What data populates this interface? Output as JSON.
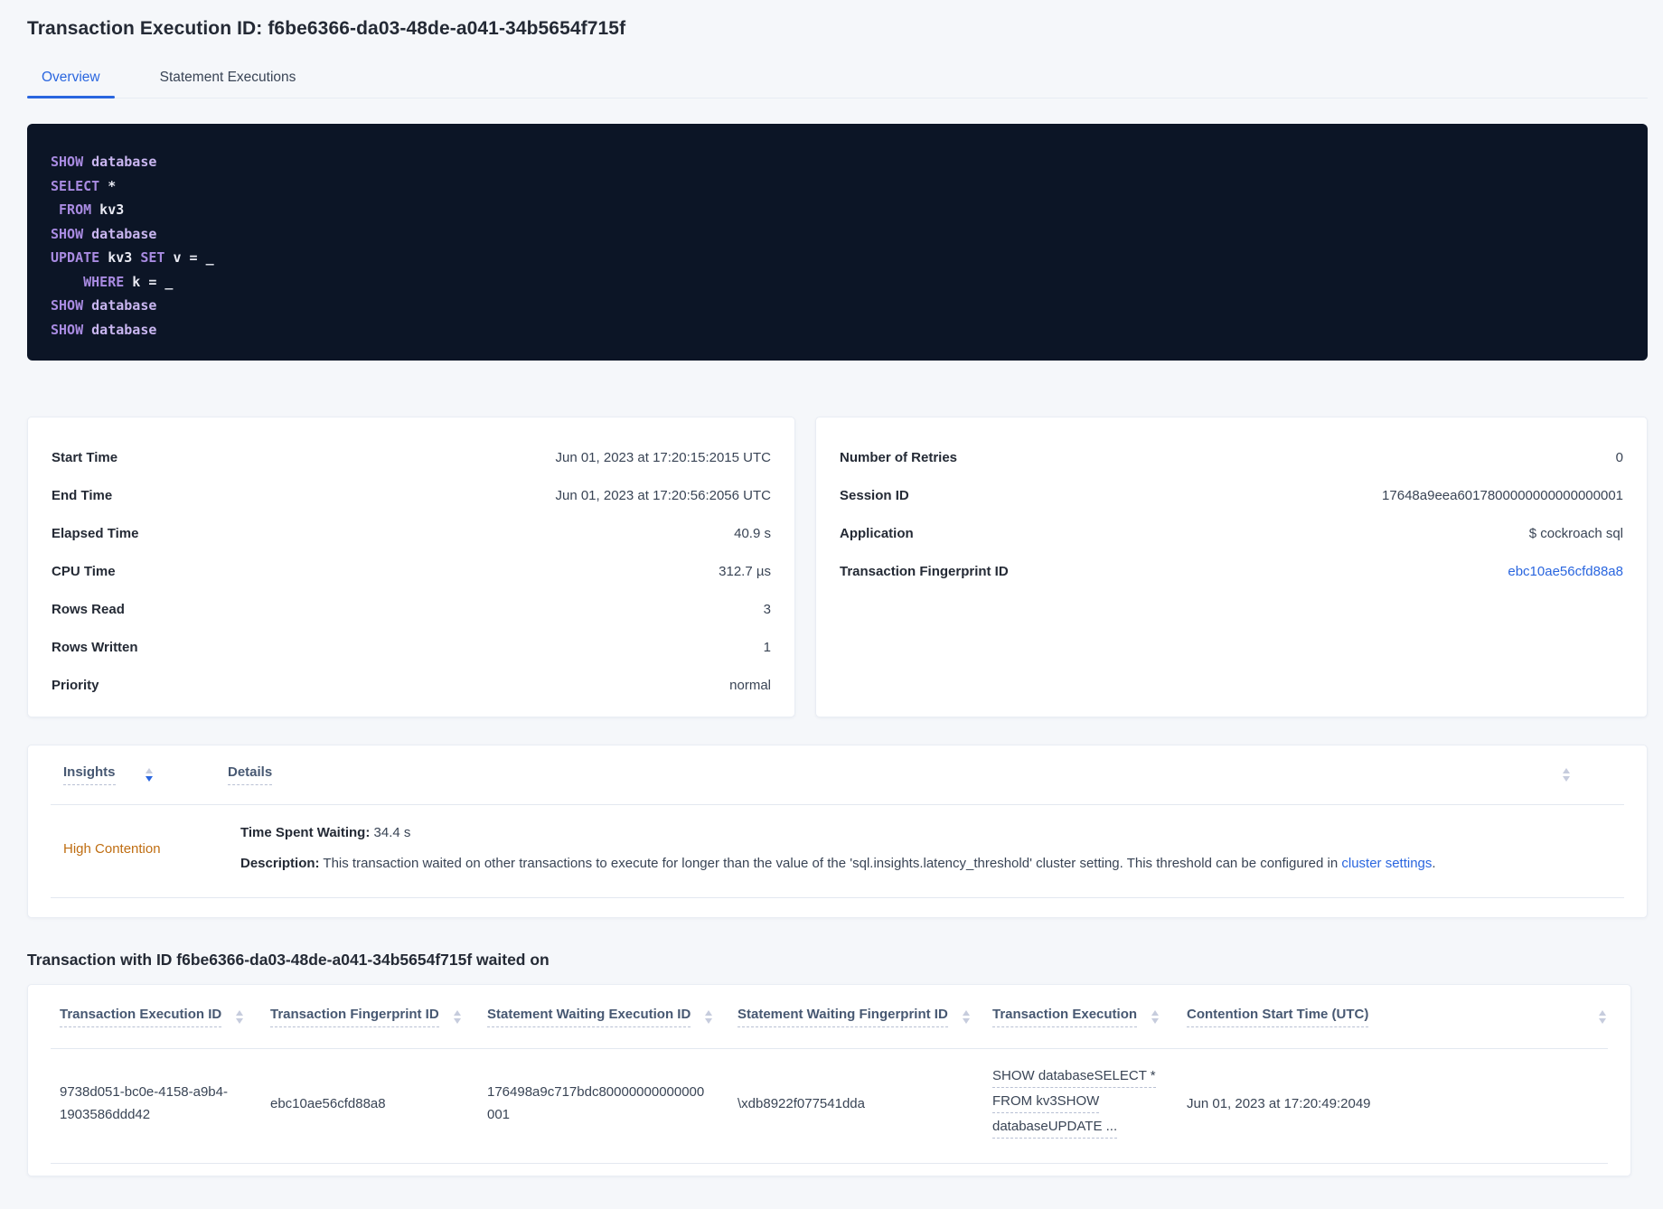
{
  "page": {
    "title": "Transaction Execution ID: f6be6366-da03-48de-a041-34b5654f715f",
    "tabs": [
      {
        "label": "Overview",
        "active": true
      },
      {
        "label": "Statement Executions",
        "active": false
      }
    ]
  },
  "sql_box": {
    "lines": [
      [
        [
          "kw",
          "SHOW"
        ],
        [
          "pl",
          " "
        ],
        [
          "db",
          "database"
        ]
      ],
      [
        [
          "kw",
          "SELECT"
        ],
        [
          "pl",
          " *"
        ]
      ],
      [
        [
          "pl",
          " "
        ],
        [
          "kw",
          "FROM"
        ],
        [
          "pl",
          " kv3"
        ]
      ],
      [
        [
          "kw",
          "SHOW"
        ],
        [
          "pl",
          " "
        ],
        [
          "db",
          "database"
        ]
      ],
      [
        [
          "kw",
          "UPDATE"
        ],
        [
          "pl",
          " kv3 "
        ],
        [
          "kw",
          "SET"
        ],
        [
          "pl",
          " v = _"
        ]
      ],
      [
        [
          "pl",
          "    "
        ],
        [
          "kw",
          "WHERE"
        ],
        [
          "pl",
          " k = _"
        ]
      ],
      [
        [
          "kw",
          "SHOW"
        ],
        [
          "pl",
          " "
        ],
        [
          "db",
          "database"
        ]
      ],
      [
        [
          "kw",
          "SHOW"
        ],
        [
          "pl",
          " "
        ],
        [
          "db",
          "database"
        ]
      ]
    ]
  },
  "stats_left": {
    "rows": [
      {
        "label": "Start Time",
        "value": "Jun 01, 2023 at 17:20:15:2015 UTC"
      },
      {
        "label": "End Time",
        "value": "Jun 01, 2023 at 17:20:56:2056 UTC"
      },
      {
        "label": "Elapsed Time",
        "value": "40.9 s"
      },
      {
        "label": "CPU Time",
        "value": "312.7 µs"
      },
      {
        "label": "Rows Read",
        "value": "3"
      },
      {
        "label": "Rows Written",
        "value": "1"
      },
      {
        "label": "Priority",
        "value": "normal"
      }
    ]
  },
  "stats_right": {
    "rows": [
      {
        "label": "Number of Retries",
        "value": "0"
      },
      {
        "label": "Session ID",
        "value": "17648a9eea6017800000000000000001"
      },
      {
        "label": "Application",
        "value": "$ cockroach sql"
      },
      {
        "label": "Transaction Fingerprint ID",
        "value": "ebc10ae56cfd88a8",
        "link": true
      }
    ]
  },
  "insights": {
    "col_insights": "Insights",
    "col_details": "Details",
    "row": {
      "insight": "High Contention",
      "waiting_label": "Time Spent Waiting:",
      "waiting_value": " 34.4 s",
      "description_label": "Description:",
      "description_text": " This transaction waited on other transactions to execute for longer than the value of the 'sql.insights.latency_threshold' cluster setting. This threshold can be configured in ",
      "description_link": "cluster settings",
      "description_suffix": "."
    }
  },
  "waited_on": {
    "heading": "Transaction with ID f6be6366-da03-48de-a041-34b5654f715f waited on",
    "columns": [
      "Transaction Execution ID",
      "Transaction Fingerprint ID",
      "Statement Waiting Execution ID",
      "Statement Waiting Fingerprint ID",
      "Transaction Execution",
      "Contention Start Time (UTC)"
    ],
    "row": {
      "transaction_execution_id": "9738d051-bc0e-4158-a9b4-1903586ddd42",
      "transaction_fingerprint_id": "ebc10ae56cfd88a8",
      "statement_waiting_execution_id": "176498a9c717bdc80000000000000001",
      "statement_waiting_fingerprint_id": "\\xdb8922f077541dda",
      "transaction_execution_lines": [
        "SHOW databaseSELECT *",
        "FROM kv3SHOW",
        "databaseUPDATE ..."
      ],
      "contention_start_time": "Jun 01, 2023 at 17:20:49:2049"
    }
  },
  "colors": {
    "accent_blue": "#2A66DF",
    "high_contention_orange": "#BF6D11",
    "sql_keyword_purple": "#A98BE2",
    "sql_identifier_purple": "#C9B6F0",
    "sql_plain": "#E9EAF3",
    "sql_background": "#0C1526",
    "page_background": "#F5F7FA"
  }
}
